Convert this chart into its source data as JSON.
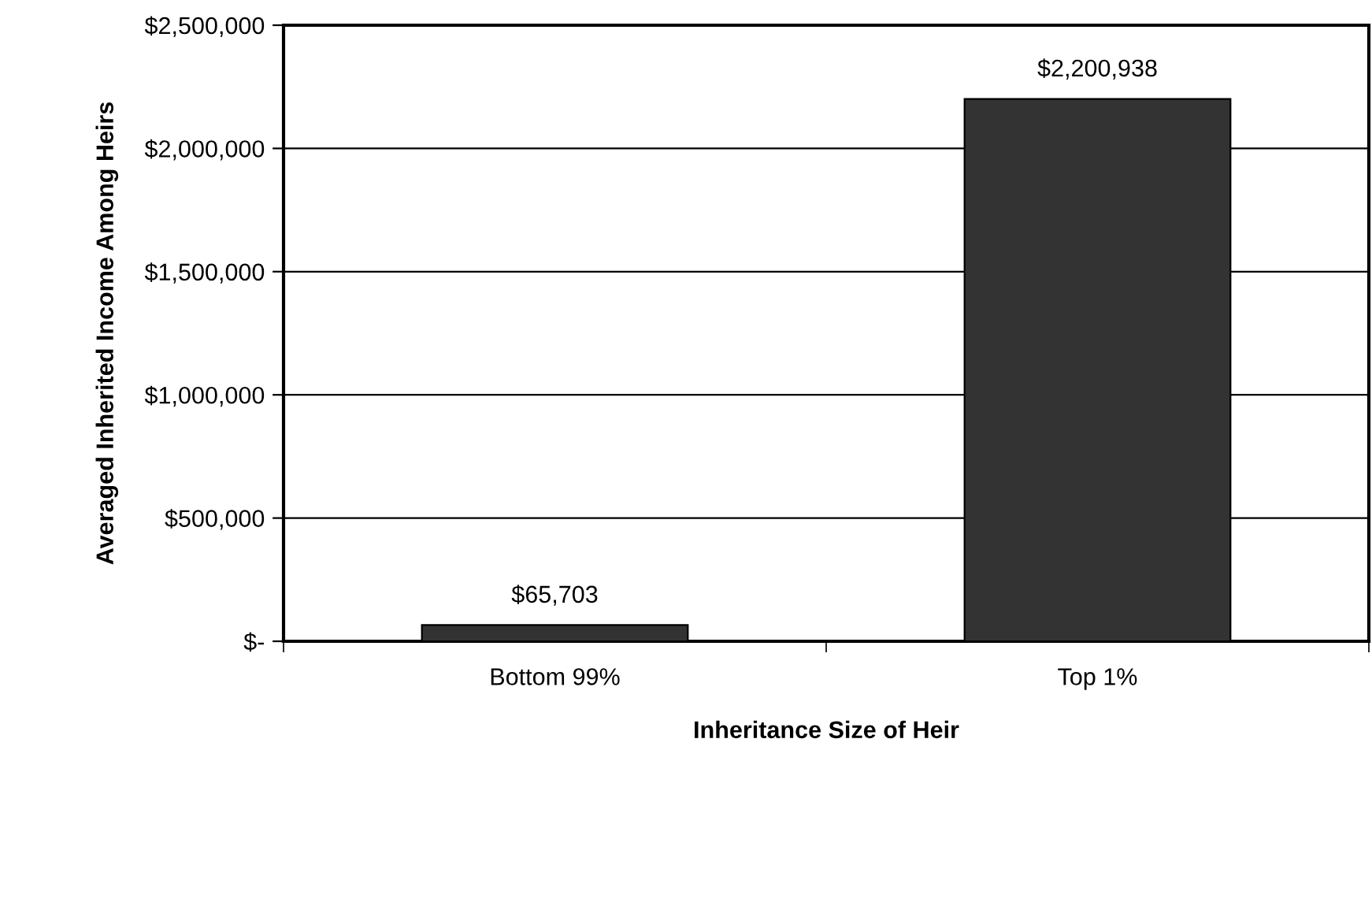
{
  "chart_data": {
    "type": "bar",
    "xlabel": "Inheritance Size of Heir",
    "ylabel": "Averaged Inherited Income Among Heirs",
    "categories": [
      "Bottom 99%",
      "Top 1%"
    ],
    "values": [
      65703,
      2200938
    ],
    "color": "#333333",
    "value_labels": [
      "$65,703",
      "$2,200,938"
    ],
    "ylim": [
      0,
      2500000
    ],
    "yticks": [
      {
        "value": 0,
        "label": "$-"
      },
      {
        "value": 500000,
        "label": "$500,000"
      },
      {
        "value": 1000000,
        "label": "$1,000,000"
      },
      {
        "value": 1500000,
        "label": "$1,500,000"
      },
      {
        "value": 2000000,
        "label": "$2,000,000"
      },
      {
        "value": 2500000,
        "label": "$2,500,000"
      }
    ],
    "grid": "y"
  }
}
